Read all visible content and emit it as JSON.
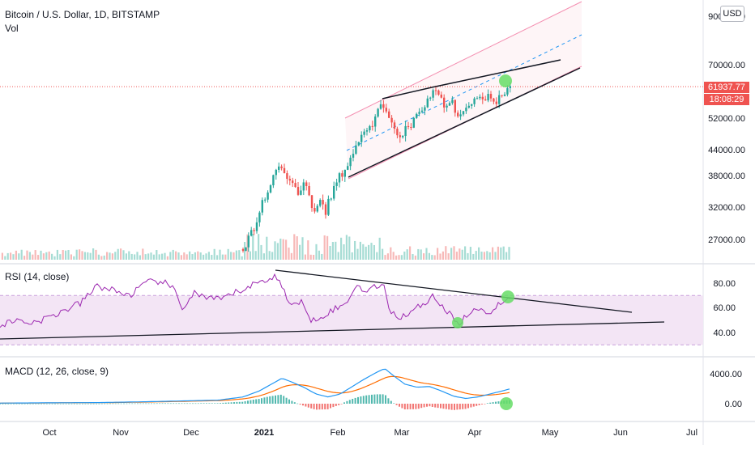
{
  "header": {
    "title": "Bitcoin / U.S. Dollar, 1D, BITSTAMP",
    "vol_label": "Vol",
    "currency": "USD"
  },
  "price_badge": {
    "last": "61937.77",
    "countdown": "18:08:29"
  },
  "colors": {
    "up": "#26a69a",
    "down": "#ef5350",
    "rsi": "#9c27b0",
    "rsi_band": "#f3e5f5",
    "macd_line": "#2196f3",
    "signal_line": "#ff6d00",
    "channel": "#f48fb1",
    "trend": "#131722",
    "highlight": "#66dd66"
  },
  "chart_data": [
    {
      "type": "candlestick",
      "title": "Bitcoin / U.S. Dollar, 1D, BITSTAMP",
      "yticks": [
        "90000.00",
        "70000.00",
        "61937.77",
        "52000.00",
        "44000.00",
        "38000.00",
        "32000.00",
        "27000.00"
      ],
      "ylim": [
        24000,
        92000
      ],
      "log_scale": true,
      "xticks": [
        "Oct",
        "Nov",
        "Dec",
        "2021",
        "Feb",
        "Mar",
        "Apr",
        "May",
        "Jun",
        "Jul"
      ],
      "annotations": [
        "ascending wedge trendlines",
        "regression channel",
        "highlighted latest candle"
      ]
    },
    {
      "type": "line",
      "title": "RSI (14, close)",
      "yticks": [
        "80.00",
        "60.00",
        "40.00"
      ],
      "bands": [
        70,
        30
      ],
      "annotations": [
        "descending trendline",
        "ascending trendline",
        "highlighted points"
      ]
    },
    {
      "type": "line",
      "title": "MACD (12, 26, close, 9)",
      "yticks": [
        "4000.00",
        "0.00"
      ],
      "series": [
        {
          "name": ""
        },
        {
          "name": ""
        },
        {
          "name": ""
        }
      ]
    }
  ]
}
